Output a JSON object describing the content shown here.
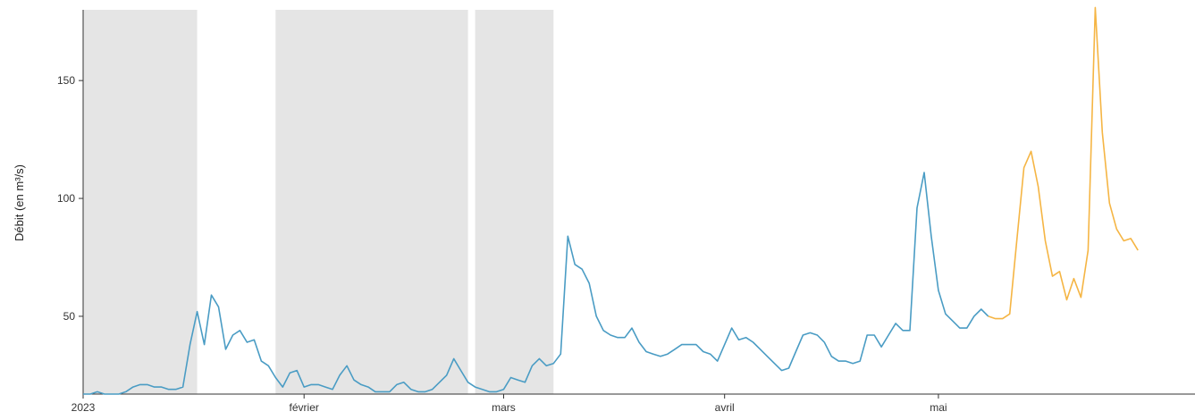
{
  "chart_data": {
    "type": "line",
    "ylabel": "Débit (en m³/s)",
    "ylim": [
      17,
      180
    ],
    "xlim": [
      "2023-01-01",
      "2023-06-06"
    ],
    "y_ticks": [
      50,
      100,
      150
    ],
    "x_ticks": [
      {
        "date": "2023-01-01",
        "label": "2023"
      },
      {
        "date": "2023-02-01",
        "label": "février"
      },
      {
        "date": "2023-03-01",
        "label": "mars"
      },
      {
        "date": "2023-04-01",
        "label": "avril"
      },
      {
        "date": "2023-05-01",
        "label": "mai"
      }
    ],
    "grid": false,
    "shaded_periods": [
      {
        "start": "2023-01-01",
        "end": "2023-01-17"
      },
      {
        "start": "2023-01-28",
        "end": "2023-02-24"
      },
      {
        "start": "2023-02-25",
        "end": "2023-03-08"
      }
    ],
    "colors": {
      "observed": "#4a9cc4",
      "forecast": "#f5b544",
      "shade": "#e5e5e5"
    },
    "series": [
      {
        "points": [
          [
            "2023-01-01",
            17
          ],
          [
            "2023-01-02",
            17
          ],
          [
            "2023-01-03",
            18
          ],
          [
            "2023-01-04",
            17
          ],
          [
            "2023-01-05",
            17
          ],
          [
            "2023-01-06",
            17
          ],
          [
            "2023-01-07",
            18
          ],
          [
            "2023-01-08",
            20
          ],
          [
            "2023-01-09",
            21
          ],
          [
            "2023-01-10",
            21
          ],
          [
            "2023-01-11",
            20
          ],
          [
            "2023-01-12",
            20
          ],
          [
            "2023-01-13",
            19
          ],
          [
            "2023-01-14",
            19
          ],
          [
            "2023-01-15",
            20
          ],
          [
            "2023-01-16",
            38
          ],
          [
            "2023-01-17",
            52
          ],
          [
            "2023-01-18",
            38
          ],
          [
            "2023-01-19",
            59
          ],
          [
            "2023-01-20",
            54
          ],
          [
            "2023-01-21",
            36
          ],
          [
            "2023-01-22",
            42
          ],
          [
            "2023-01-23",
            44
          ],
          [
            "2023-01-24",
            39
          ],
          [
            "2023-01-25",
            40
          ],
          [
            "2023-01-26",
            31
          ],
          [
            "2023-01-27",
            29
          ],
          [
            "2023-01-28",
            24
          ],
          [
            "2023-01-29",
            20
          ],
          [
            "2023-01-30",
            26
          ],
          [
            "2023-01-31",
            27
          ],
          [
            "2023-02-01",
            20
          ],
          [
            "2023-02-02",
            21
          ],
          [
            "2023-02-03",
            21
          ],
          [
            "2023-02-04",
            20
          ],
          [
            "2023-02-05",
            19
          ],
          [
            "2023-02-06",
            25
          ],
          [
            "2023-02-07",
            29
          ],
          [
            "2023-02-08",
            23
          ],
          [
            "2023-02-09",
            21
          ],
          [
            "2023-02-10",
            20
          ],
          [
            "2023-02-11",
            18
          ],
          [
            "2023-02-12",
            18
          ],
          [
            "2023-02-13",
            18
          ],
          [
            "2023-02-14",
            21
          ],
          [
            "2023-02-15",
            22
          ],
          [
            "2023-02-16",
            19
          ],
          [
            "2023-02-17",
            18
          ],
          [
            "2023-02-18",
            18
          ],
          [
            "2023-02-19",
            19
          ],
          [
            "2023-02-20",
            22
          ],
          [
            "2023-02-21",
            25
          ],
          [
            "2023-02-22",
            32
          ],
          [
            "2023-02-23",
            27
          ],
          [
            "2023-02-24",
            22
          ],
          [
            "2023-02-25",
            20
          ],
          [
            "2023-02-26",
            19
          ],
          [
            "2023-02-27",
            18
          ],
          [
            "2023-02-28",
            18
          ],
          [
            "2023-03-01",
            19
          ],
          [
            "2023-03-02",
            24
          ],
          [
            "2023-03-03",
            23
          ],
          [
            "2023-03-04",
            22
          ],
          [
            "2023-03-05",
            29
          ],
          [
            "2023-03-06",
            32
          ],
          [
            "2023-03-07",
            29
          ],
          [
            "2023-03-08",
            30
          ],
          [
            "2023-03-09",
            34
          ],
          [
            "2023-03-10",
            84
          ],
          [
            "2023-03-11",
            72
          ],
          [
            "2023-03-12",
            70
          ],
          [
            "2023-03-13",
            64
          ],
          [
            "2023-03-14",
            50
          ],
          [
            "2023-03-15",
            44
          ],
          [
            "2023-03-16",
            42
          ],
          [
            "2023-03-17",
            41
          ],
          [
            "2023-03-18",
            41
          ],
          [
            "2023-03-19",
            45
          ],
          [
            "2023-03-20",
            39
          ],
          [
            "2023-03-21",
            35
          ],
          [
            "2023-03-22",
            34
          ],
          [
            "2023-03-23",
            33
          ],
          [
            "2023-03-24",
            34
          ],
          [
            "2023-03-25",
            36
          ],
          [
            "2023-03-26",
            38
          ],
          [
            "2023-03-27",
            38
          ],
          [
            "2023-03-28",
            38
          ],
          [
            "2023-03-29",
            35
          ],
          [
            "2023-03-30",
            34
          ],
          [
            "2023-03-31",
            31
          ],
          [
            "2023-04-01",
            38
          ],
          [
            "2023-04-02",
            45
          ],
          [
            "2023-04-03",
            40
          ],
          [
            "2023-04-04",
            41
          ],
          [
            "2023-04-05",
            39
          ],
          [
            "2023-04-06",
            36
          ],
          [
            "2023-04-07",
            33
          ],
          [
            "2023-04-08",
            30
          ],
          [
            "2023-04-09",
            27
          ],
          [
            "2023-04-10",
            28
          ],
          [
            "2023-04-11",
            35
          ],
          [
            "2023-04-12",
            42
          ],
          [
            "2023-04-13",
            43
          ],
          [
            "2023-04-14",
            42
          ],
          [
            "2023-04-15",
            39
          ],
          [
            "2023-04-16",
            33
          ],
          [
            "2023-04-17",
            31
          ],
          [
            "2023-04-18",
            31
          ],
          [
            "2023-04-19",
            30
          ],
          [
            "2023-04-20",
            31
          ],
          [
            "2023-04-21",
            42
          ],
          [
            "2023-04-22",
            42
          ],
          [
            "2023-04-23",
            37
          ],
          [
            "2023-04-24",
            42
          ],
          [
            "2023-04-25",
            47
          ],
          [
            "2023-04-26",
            44
          ],
          [
            "2023-04-27",
            44
          ],
          [
            "2023-04-28",
            96
          ],
          [
            "2023-04-29",
            111
          ],
          [
            "2023-04-30",
            84
          ],
          [
            "2023-05-01",
            61
          ],
          [
            "2023-05-02",
            51
          ],
          [
            "2023-05-03",
            48
          ],
          [
            "2023-05-04",
            45
          ],
          [
            "2023-05-05",
            45
          ],
          [
            "2023-05-06",
            50
          ],
          [
            "2023-05-07",
            53
          ],
          [
            "2023-05-08",
            50
          ]
        ]
      },
      {
        "points": [
          [
            "2023-05-08",
            50
          ],
          [
            "2023-05-09",
            49
          ],
          [
            "2023-05-10",
            49
          ],
          [
            "2023-05-11",
            51
          ],
          [
            "2023-05-12",
            82
          ],
          [
            "2023-05-13",
            113
          ],
          [
            "2023-05-14",
            120
          ],
          [
            "2023-05-15",
            105
          ],
          [
            "2023-05-16",
            82
          ],
          [
            "2023-05-17",
            67
          ],
          [
            "2023-05-18",
            69
          ],
          [
            "2023-05-19",
            57
          ],
          [
            "2023-05-20",
            66
          ],
          [
            "2023-05-21",
            58
          ],
          [
            "2023-05-22",
            78
          ],
          [
            "2023-05-23",
            181
          ],
          [
            "2023-05-24",
            128
          ],
          [
            "2023-05-25",
            98
          ],
          [
            "2023-05-26",
            87
          ],
          [
            "2023-05-27",
            82
          ],
          [
            "2023-05-28",
            83
          ],
          [
            "2023-05-29",
            78
          ]
        ]
      }
    ]
  }
}
